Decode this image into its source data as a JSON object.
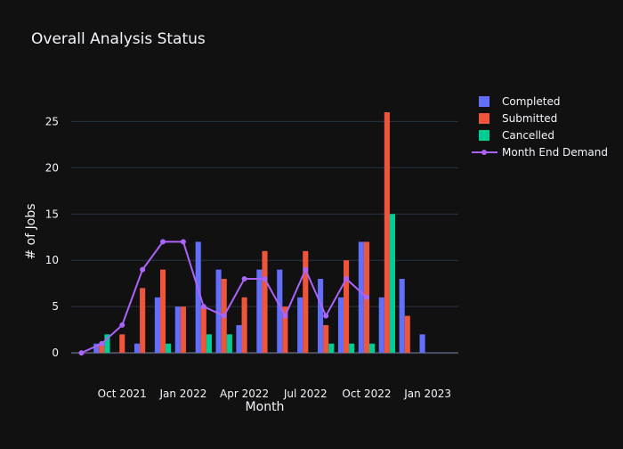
{
  "chart_data": {
    "type": "bar",
    "title": "Overall Analysis Status",
    "xlabel": "Month",
    "ylabel": "# of Jobs",
    "ylim": [
      -2.3,
      28.5
    ],
    "yticks": [
      0,
      5,
      10,
      15,
      20,
      25
    ],
    "xtick_labels": [
      "Oct 2021",
      "Jan 2022",
      "Apr 2022",
      "Jul 2022",
      "Oct 2022",
      "Jan 2023"
    ],
    "xtick_months": [
      "2021-10",
      "2022-01",
      "2022-04",
      "2022-07",
      "2022-10",
      "2023-01"
    ],
    "categories": [
      "2021-08",
      "2021-09",
      "2021-10",
      "2021-11",
      "2021-12",
      "2022-01",
      "2022-02",
      "2022-03",
      "2022-04",
      "2022-05",
      "2022-06",
      "2022-07",
      "2022-08",
      "2022-09",
      "2022-10",
      "2022-11",
      "2022-12",
      "2023-01",
      "2023-02"
    ],
    "grid": true,
    "legend_position": "top-right",
    "series": [
      {
        "name": "Completed",
        "kind": "bar",
        "color": "#636efa",
        "values": [
          0,
          1,
          0,
          1,
          6,
          5,
          12,
          9,
          3,
          9,
          9,
          6,
          8,
          6,
          12,
          6,
          8,
          2,
          null
        ]
      },
      {
        "name": "Submitted",
        "kind": "bar",
        "color": "#ef553b",
        "values": [
          0,
          1,
          2,
          7,
          9,
          5,
          5,
          8,
          6,
          11,
          5,
          11,
          3,
          10,
          12,
          26,
          4,
          null,
          null
        ]
      },
      {
        "name": "Cancelled",
        "kind": "bar",
        "color": "#00cc96",
        "values": [
          0,
          2,
          0,
          0,
          1,
          0,
          2,
          2,
          0,
          0,
          0,
          0,
          1,
          1,
          1,
          15,
          0,
          null,
          null
        ]
      },
      {
        "name": "Month End Demand",
        "kind": "line",
        "color": "#ab63fa",
        "values": [
          0,
          1,
          3,
          9,
          12,
          12,
          5,
          4,
          8,
          8,
          4,
          9,
          4,
          8,
          6,
          null,
          null,
          null,
          null
        ]
      }
    ]
  }
}
